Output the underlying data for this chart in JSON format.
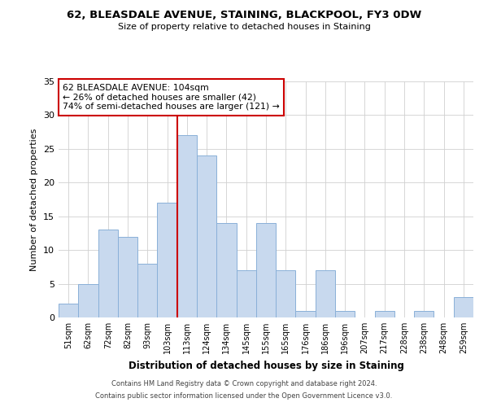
{
  "title": "62, BLEASDALE AVENUE, STAINING, BLACKPOOL, FY3 0DW",
  "subtitle": "Size of property relative to detached houses in Staining",
  "xlabel": "Distribution of detached houses by size in Staining",
  "ylabel": "Number of detached properties",
  "bar_labels": [
    "51sqm",
    "62sqm",
    "72sqm",
    "82sqm",
    "93sqm",
    "103sqm",
    "113sqm",
    "124sqm",
    "134sqm",
    "145sqm",
    "155sqm",
    "165sqm",
    "176sqm",
    "186sqm",
    "196sqm",
    "207sqm",
    "217sqm",
    "228sqm",
    "238sqm",
    "248sqm",
    "259sqm"
  ],
  "bar_values": [
    2,
    5,
    13,
    12,
    8,
    17,
    27,
    24,
    14,
    7,
    14,
    7,
    1,
    7,
    1,
    0,
    1,
    0,
    1,
    0,
    3
  ],
  "bar_color": "#c8d9ee",
  "bar_edgecolor": "#8ab0d8",
  "vline_x_index": 5,
  "vline_color": "#cc0000",
  "ylim": [
    0,
    35
  ],
  "yticks": [
    0,
    5,
    10,
    15,
    20,
    25,
    30,
    35
  ],
  "annotation_text": "62 BLEASDALE AVENUE: 104sqm\n← 26% of detached houses are smaller (42)\n74% of semi-detached houses are larger (121) →",
  "annotation_box_edgecolor": "#cc0000",
  "footer1": "Contains HM Land Registry data © Crown copyright and database right 2024.",
  "footer2": "Contains public sector information licensed under the Open Government Licence v3.0.",
  "background_color": "#ffffff",
  "grid_color": "#d0d0d0"
}
